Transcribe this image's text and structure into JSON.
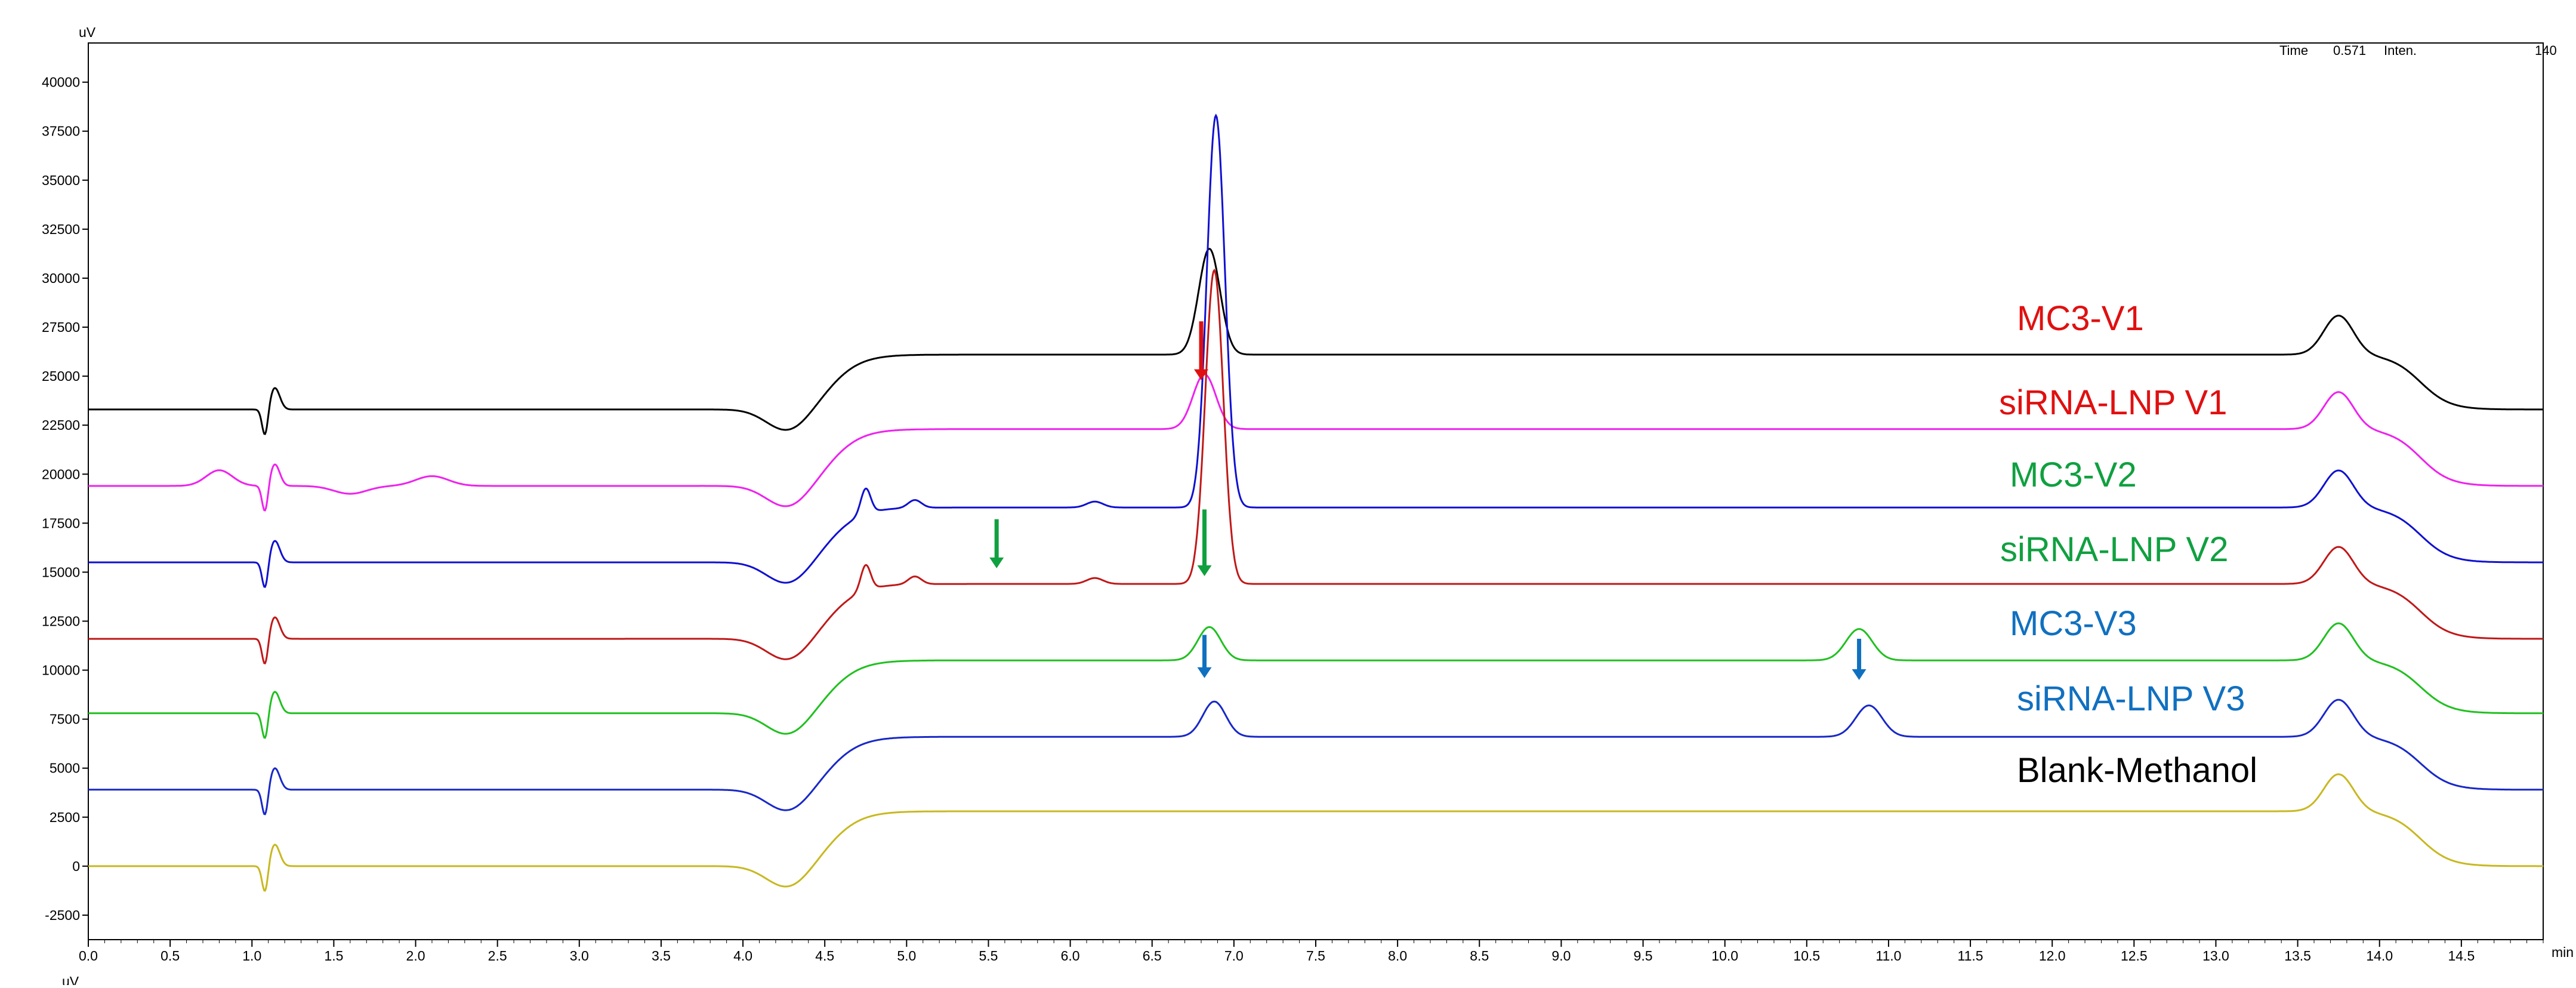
{
  "chart_data": {
    "type": "line",
    "y_unit": "uV",
    "x_unit": "min",
    "xlim": [
      0.0,
      15.0
    ],
    "ylim": [
      -3750,
      42000
    ],
    "x_ticks": [
      "0.0",
      "0.5",
      "1.0",
      "1.5",
      "2.0",
      "2.5",
      "3.0",
      "3.5",
      "4.0",
      "4.5",
      "5.0",
      "5.5",
      "6.0",
      "6.5",
      "7.0",
      "7.5",
      "8.0",
      "8.5",
      "9.0",
      "9.5",
      "10.0",
      "10.5",
      "11.0",
      "11.5",
      "12.0",
      "12.5",
      "13.0",
      "13.5",
      "14.0",
      "14.5"
    ],
    "y_ticks": [
      "-2500",
      "0",
      "2500",
      "5000",
      "7500",
      "10000",
      "12500",
      "15000",
      "17500",
      "20000",
      "22500",
      "25000",
      "27500",
      "30000",
      "32500",
      "35000",
      "37500",
      "40000"
    ],
    "status": {
      "time_label": "Time",
      "time_value": "0.571",
      "inten_label": "Inten.",
      "inten_value": "140"
    },
    "series": [
      {
        "name": "MC3-V1",
        "color": "#000000",
        "baseline": 23300,
        "solvent_shift": 2800,
        "peaks": [
          [
            6.85,
            5400,
            0.065
          ],
          [
            13.75,
            2000,
            0.09
          ]
        ]
      },
      {
        "name": "siRNA-LNP V1",
        "color": "#ee22ee",
        "baseline": 19400,
        "solvent_shift": 2900,
        "peaks": [
          [
            6.82,
            2800,
            0.07
          ],
          [
            13.75,
            1900,
            0.09
          ]
        ],
        "wiggles": [
          [
            0.8,
            800,
            0.08
          ],
          [
            1.6,
            -400,
            0.1
          ],
          [
            2.1,
            500,
            0.1
          ]
        ]
      },
      {
        "name": "MC3-V2",
        "color": "#1010d0",
        "baseline": 15500,
        "solvent_shift": 2800,
        "peaks": [
          [
            4.75,
            1300,
            0.03
          ],
          [
            5.05,
            400,
            0.04
          ],
          [
            6.15,
            300,
            0.05
          ],
          [
            6.89,
            20000,
            0.055
          ],
          [
            13.75,
            1900,
            0.09
          ]
        ]
      },
      {
        "name": "siRNA-LNP V2",
        "color": "#c01818",
        "baseline": 11600,
        "solvent_shift": 2800,
        "peaks": [
          [
            4.75,
            1300,
            0.03
          ],
          [
            5.05,
            400,
            0.04
          ],
          [
            6.15,
            300,
            0.05
          ],
          [
            6.88,
            16000,
            0.055
          ],
          [
            13.75,
            1900,
            0.09
          ]
        ]
      },
      {
        "name": "MC3-V3",
        "color": "#20c020",
        "baseline": 7800,
        "solvent_shift": 2700,
        "peaks": [
          [
            6.85,
            1700,
            0.07
          ],
          [
            10.82,
            1600,
            0.08
          ],
          [
            13.75,
            1900,
            0.09
          ]
        ]
      },
      {
        "name": "siRNA-LNP V3",
        "color": "#1828c8",
        "baseline": 3900,
        "solvent_shift": 2700,
        "peaks": [
          [
            6.88,
            1800,
            0.07
          ],
          [
            10.88,
            1600,
            0.08
          ],
          [
            13.75,
            1900,
            0.09
          ]
        ]
      },
      {
        "name": "Blank-Methanol",
        "color": "#c8b820",
        "baseline": 0,
        "solvent_shift": 2800,
        "peaks": [
          [
            13.75,
            1900,
            0.09
          ]
        ]
      }
    ],
    "labels": [
      {
        "text": "MC3-V1",
        "color": "#e01010"
      },
      {
        "text": "siRNA-LNP V1",
        "color": "#e01010"
      },
      {
        "text": "MC3-V2",
        "color": "#10a040"
      },
      {
        "text": "siRNA-LNP V2",
        "color": "#10a040"
      },
      {
        "text": "MC3-V3",
        "color": "#1070c0"
      },
      {
        "text": "siRNA-LNP V3",
        "color": "#1070c0"
      },
      {
        "text": "Blank-Methanol",
        "color": "#000000"
      }
    ],
    "arrows": [
      {
        "x": 6.8,
        "y_top": 27800,
        "y_bottom": 24800,
        "color": "#e01010"
      },
      {
        "x": 5.55,
        "y_top": 17700,
        "y_bottom": 15200,
        "color": "#10a040"
      },
      {
        "x": 6.82,
        "y_top": 18200,
        "y_bottom": 14800,
        "color": "#10a040"
      },
      {
        "x": 6.82,
        "y_top": 11800,
        "y_bottom": 9600,
        "color": "#1070c0"
      },
      {
        "x": 10.82,
        "y_top": 11600,
        "y_bottom": 9500,
        "color": "#1070c0"
      }
    ],
    "grid": false,
    "legend": "none"
  }
}
